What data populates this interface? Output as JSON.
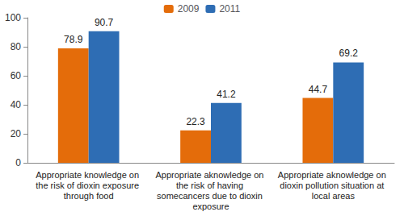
{
  "chart_data": {
    "type": "bar",
    "categories": [
      "Appropriate knowledge on the risk of dioxin exposure through food",
      "Appropriate aknowledge on the risk of having somecancers due to dioxin exposure",
      "Appropriate aknowledge on dioxin pollution situation at local areas"
    ],
    "series": [
      {
        "name": "2009",
        "color": "#e46c0a",
        "values": [
          78.9,
          22.3,
          44.7
        ]
      },
      {
        "name": "2011",
        "color": "#2e6db4",
        "values": [
          90.7,
          41.2,
          69.2
        ]
      }
    ],
    "ylim": [
      0,
      100
    ],
    "yticks": [
      0,
      20,
      40,
      60,
      80,
      100
    ],
    "grid": false,
    "legend": "top",
    "data_labels": true
  }
}
